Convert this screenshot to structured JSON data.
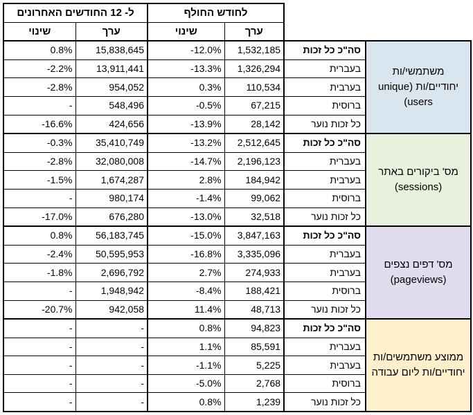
{
  "header": {
    "period_12m": "ל- 12 החודשים האחרונים",
    "period_month": "לחודש החולף",
    "change_col": "שינוי",
    "value_col": "ערך"
  },
  "colors": {
    "users_bg": "#dae6ef",
    "sessions_bg": "#e7f1dd",
    "pageviews_bg": "#e2dcef",
    "average_bg": "#fdf0cb"
  },
  "sections": [
    {
      "category": "משתמשי/ות יחודיים/ות (unique users)",
      "rows": [
        {
          "label": "סה\"כ כל זכות",
          "month_value": "1,532,185",
          "month_change": "-12.0%",
          "year_value": "15,838,645",
          "year_change": "0.8%"
        },
        {
          "label": "בעברית",
          "month_value": "1,326,294",
          "month_change": "-13.3%",
          "year_value": "13,911,441",
          "year_change": "-2.2%"
        },
        {
          "label": "בערבית",
          "month_value": "110,534",
          "month_change": "0.3%",
          "year_value": "954,052",
          "year_change": "-2.8%"
        },
        {
          "label": "ברוסית",
          "month_value": "67,215",
          "month_change": "-0.5%",
          "year_value": "548,496",
          "year_change": "-"
        },
        {
          "label": "כל זכות נוער",
          "month_value": "28,142",
          "month_change": "-13.9%",
          "year_value": "424,656",
          "year_change": "-16.6%"
        }
      ]
    },
    {
      "category": "מס' ביקורים באתר (sessions)",
      "rows": [
        {
          "label": "סה\"כ כל זכות",
          "month_value": "2,512,645",
          "month_change": "-13.2%",
          "year_value": "35,410,749",
          "year_change": "-0.3%"
        },
        {
          "label": "בעברית",
          "month_value": "2,196,123",
          "month_change": "-14.7%",
          "year_value": "32,080,008",
          "year_change": "-2.8%"
        },
        {
          "label": "בערבית",
          "month_value": "184,942",
          "month_change": "2.8%",
          "year_value": "1,674,287",
          "year_change": "-1.5%"
        },
        {
          "label": "ברוסית",
          "month_value": "99,062",
          "month_change": "-1.4%",
          "year_value": "980,174",
          "year_change": "-"
        },
        {
          "label": "כל זכות נוער",
          "month_value": "32,518",
          "month_change": "-13.0%",
          "year_value": "676,280",
          "year_change": "-17.0%"
        }
      ]
    },
    {
      "category": "מס' דפים נצפים (pageviews)",
      "rows": [
        {
          "label": "סה\"כ כל זכות",
          "month_value": "3,847,163",
          "month_change": "-15.0%",
          "year_value": "56,183,745",
          "year_change": "0.8%"
        },
        {
          "label": "בעברית",
          "month_value": "3,335,096",
          "month_change": "-16.8%",
          "year_value": "50,595,953",
          "year_change": "-2.4%"
        },
        {
          "label": "בערבית",
          "month_value": "274,933",
          "month_change": "2.7%",
          "year_value": "2,696,792",
          "year_change": "-1.8%"
        },
        {
          "label": "ברוסית",
          "month_value": "188,421",
          "month_change": "-8.4%",
          "year_value": "1,948,942",
          "year_change": "-"
        },
        {
          "label": "כל זכות נוער",
          "month_value": "48,713",
          "month_change": "11.4%",
          "year_value": "942,058",
          "year_change": "-20.7%"
        }
      ]
    },
    {
      "category": "ממוצע משתמשים/ות יחודיים/ות ליום עבודה",
      "rows": [
        {
          "label": "סה\"כ כל זכות",
          "month_value": "94,823",
          "month_change": "0.8%",
          "year_value": "-",
          "year_change": "-"
        },
        {
          "label": "בעברית",
          "month_value": "85,591",
          "month_change": "1.1%",
          "year_value": "-",
          "year_change": "-"
        },
        {
          "label": "בערבית",
          "month_value": "5,225",
          "month_change": "-1.1%",
          "year_value": "-",
          "year_change": "-"
        },
        {
          "label": "ברוסית",
          "month_value": "2,768",
          "month_change": "-5.0%",
          "year_value": "-",
          "year_change": "-"
        },
        {
          "label": "כל זכות נוער",
          "month_value": "1,239",
          "month_change": "0.8%",
          "year_value": "-",
          "year_change": "-"
        }
      ]
    }
  ]
}
